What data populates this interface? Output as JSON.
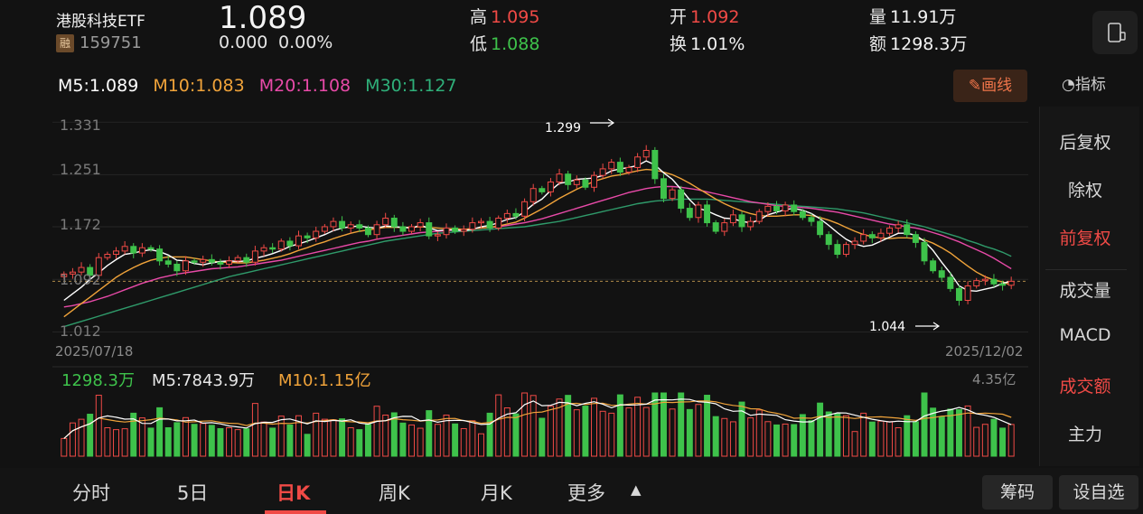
{
  "header": {
    "name": "港股科技ETF",
    "badge": "融",
    "code": "159751",
    "price": "1.089",
    "change": "0.000",
    "change_pct": "0.00%",
    "high_label": "高",
    "high": "1.095",
    "low_label": "低",
    "low": "1.088",
    "open_label": "开",
    "open": "1.092",
    "turnover_label": "换",
    "turnover": "1.01%",
    "volume_label": "量",
    "volume": "11.91万",
    "amount_label": "额",
    "amount": "1298.3万"
  },
  "ma": {
    "m5": "M5:1.089",
    "m10": "M10:1.083",
    "m20": "M20:1.108",
    "m30": "M30:1.127"
  },
  "toolbar": {
    "draw_label": "画线",
    "indicator_label": "指标"
  },
  "chart_labels": {
    "y_top": "1.331",
    "y_2": "1.251",
    "y_3": "1.172",
    "y_4": "1.092",
    "y_bottom": "1.012",
    "date_start": "2025/07/18",
    "date_end": "2025/12/02",
    "high_marker": "1.299",
    "low_marker": "1.044"
  },
  "volume_panel": {
    "current": "1298.3万",
    "m5": "M5:7843.9万",
    "m10": "M10:1.15亿",
    "max_label": "4.35亿"
  },
  "side_menu": [
    "后复权",
    "除权",
    "前复权",
    "成交量",
    "MACD",
    "成交额",
    "主力"
  ],
  "tabs": [
    "分时",
    "5日",
    "日K",
    "周K",
    "月K",
    "更多"
  ],
  "buttons": {
    "chips": "筹码",
    "watchlist": "设自选"
  },
  "colors": {
    "up": "#f04a46",
    "down": "#3ec24b",
    "m5": "#ffffff",
    "m10": "#f0a33a",
    "m20": "#e84aa8",
    "m30": "#2f9a6a"
  },
  "chart_data": {
    "type": "candlestick",
    "x_range": [
      "2025/07/18",
      "2025/12/02"
    ],
    "y_ticks": [
      1.331,
      1.251,
      1.172,
      1.092,
      1.012
    ],
    "ylim": [
      0.992,
      1.345
    ],
    "close": [
      1.1,
      1.103,
      1.11,
      1.098,
      1.125,
      1.13,
      1.135,
      1.142,
      1.132,
      1.14,
      1.138,
      1.12,
      1.115,
      1.105,
      1.12,
      1.118,
      1.122,
      1.118,
      1.115,
      1.12,
      1.125,
      1.118,
      1.135,
      1.14,
      1.138,
      1.15,
      1.143,
      1.158,
      1.155,
      1.165,
      1.172,
      1.18,
      1.17,
      1.175,
      1.17,
      1.16,
      1.175,
      1.185,
      1.172,
      1.165,
      1.172,
      1.178,
      1.158,
      1.16,
      1.17,
      1.165,
      1.168,
      1.178,
      1.18,
      1.17,
      1.185,
      1.192,
      1.188,
      1.21,
      1.23,
      1.225,
      1.24,
      1.252,
      1.236,
      1.243,
      1.232,
      1.25,
      1.26,
      1.27,
      1.255,
      1.262,
      1.278,
      1.288,
      1.245,
      1.215,
      1.228,
      1.2,
      1.186,
      1.205,
      1.178,
      1.165,
      1.178,
      1.19,
      1.172,
      1.18,
      1.195,
      1.203,
      1.196,
      1.205,
      1.195,
      1.186,
      1.18,
      1.16,
      1.145,
      1.13,
      1.145,
      1.15,
      1.16,
      1.155,
      1.162,
      1.17,
      1.175,
      1.16,
      1.148,
      1.12,
      1.105,
      1.095,
      1.078,
      1.06,
      1.082,
      1.09,
      1.092,
      1.085,
      1.083,
      1.089
    ],
    "m5": [
      1.06,
      1.07,
      1.08,
      1.092,
      1.102,
      1.113,
      1.122,
      1.13,
      1.132,
      1.135,
      1.137,
      1.134,
      1.129,
      1.121,
      1.12,
      1.116,
      1.114,
      1.117,
      1.119,
      1.12,
      1.119,
      1.12,
      1.124,
      1.127,
      1.131,
      1.136,
      1.142,
      1.146,
      1.15,
      1.155,
      1.16,
      1.166,
      1.17,
      1.172,
      1.173,
      1.171,
      1.17,
      1.173,
      1.172,
      1.171,
      1.17,
      1.174,
      1.17,
      1.166,
      1.167,
      1.167,
      1.166,
      1.168,
      1.172,
      1.174,
      1.178,
      1.183,
      1.186,
      1.195,
      1.206,
      1.214,
      1.227,
      1.238,
      1.24,
      1.244,
      1.245,
      1.246,
      1.25,
      1.257,
      1.26,
      1.262,
      1.265,
      1.272,
      1.266,
      1.254,
      1.244,
      1.229,
      1.213,
      1.2,
      1.196,
      1.19,
      1.185,
      1.184,
      1.18,
      1.178,
      1.182,
      1.19,
      1.194,
      1.198,
      1.2,
      1.197,
      1.192,
      1.184,
      1.174,
      1.163,
      1.153,
      1.146,
      1.142,
      1.144,
      1.15,
      1.156,
      1.162,
      1.162,
      1.159,
      1.15,
      1.136,
      1.118,
      1.101,
      1.082,
      1.075,
      1.074,
      1.077,
      1.08,
      1.086,
      1.089
    ],
    "m10": [
      1.035,
      1.045,
      1.055,
      1.065,
      1.075,
      1.085,
      1.095,
      1.103,
      1.11,
      1.116,
      1.121,
      1.124,
      1.126,
      1.126,
      1.126,
      1.124,
      1.122,
      1.12,
      1.118,
      1.118,
      1.117,
      1.117,
      1.119,
      1.121,
      1.124,
      1.127,
      1.131,
      1.136,
      1.14,
      1.145,
      1.149,
      1.154,
      1.158,
      1.162,
      1.165,
      1.167,
      1.169,
      1.171,
      1.171,
      1.171,
      1.171,
      1.172,
      1.171,
      1.17,
      1.169,
      1.169,
      1.168,
      1.169,
      1.17,
      1.171,
      1.173,
      1.176,
      1.179,
      1.185,
      1.192,
      1.199,
      1.207,
      1.215,
      1.222,
      1.229,
      1.235,
      1.241,
      1.245,
      1.249,
      1.251,
      1.254,
      1.257,
      1.259,
      1.258,
      1.255,
      1.251,
      1.245,
      1.238,
      1.23,
      1.222,
      1.214,
      1.207,
      1.201,
      1.196,
      1.192,
      1.189,
      1.188,
      1.188,
      1.189,
      1.19,
      1.19,
      1.189,
      1.186,
      1.182,
      1.177,
      1.171,
      1.165,
      1.16,
      1.157,
      1.155,
      1.154,
      1.155,
      1.155,
      1.154,
      1.152,
      1.147,
      1.14,
      1.132,
      1.122,
      1.112,
      1.103,
      1.096,
      1.091,
      1.088,
      1.083
    ],
    "m20": [
      1.05,
      1.052,
      1.055,
      1.058,
      1.062,
      1.066,
      1.071,
      1.076,
      1.081,
      1.086,
      1.09,
      1.094,
      1.097,
      1.1,
      1.102,
      1.104,
      1.106,
      1.108,
      1.109,
      1.11,
      1.111,
      1.113,
      1.115,
      1.117,
      1.119,
      1.121,
      1.124,
      1.127,
      1.13,
      1.133,
      1.136,
      1.139,
      1.142,
      1.145,
      1.148,
      1.15,
      1.153,
      1.155,
      1.157,
      1.159,
      1.161,
      1.163,
      1.164,
      1.165,
      1.166,
      1.167,
      1.168,
      1.169,
      1.17,
      1.171,
      1.172,
      1.174,
      1.176,
      1.178,
      1.181,
      1.184,
      1.188,
      1.192,
      1.196,
      1.2,
      1.204,
      1.208,
      1.212,
      1.216,
      1.22,
      1.224,
      1.227,
      1.23,
      1.232,
      1.233,
      1.233,
      1.232,
      1.23,
      1.228,
      1.225,
      1.222,
      1.219,
      1.216,
      1.213,
      1.21,
      1.208,
      1.206,
      1.204,
      1.203,
      1.202,
      1.201,
      1.2,
      1.198,
      1.196,
      1.194,
      1.191,
      1.188,
      1.185,
      1.182,
      1.179,
      1.176,
      1.174,
      1.172,
      1.17,
      1.167,
      1.163,
      1.159,
      1.154,
      1.149,
      1.143,
      1.137,
      1.131,
      1.124,
      1.116,
      1.108
    ],
    "m30": [
      1.02,
      1.024,
      1.028,
      1.032,
      1.036,
      1.04,
      1.044,
      1.048,
      1.052,
      1.056,
      1.06,
      1.064,
      1.068,
      1.072,
      1.076,
      1.08,
      1.084,
      1.088,
      1.092,
      1.096,
      1.099,
      1.102,
      1.105,
      1.108,
      1.111,
      1.114,
      1.117,
      1.12,
      1.123,
      1.126,
      1.129,
      1.132,
      1.135,
      1.138,
      1.141,
      1.144,
      1.147,
      1.15,
      1.152,
      1.154,
      1.156,
      1.158,
      1.16,
      1.162,
      1.163,
      1.164,
      1.165,
      1.166,
      1.167,
      1.168,
      1.169,
      1.17,
      1.171,
      1.172,
      1.174,
      1.176,
      1.178,
      1.18,
      1.183,
      1.186,
      1.189,
      1.192,
      1.195,
      1.198,
      1.201,
      1.204,
      1.207,
      1.209,
      1.211,
      1.212,
      1.213,
      1.214,
      1.214,
      1.214,
      1.214,
      1.213,
      1.212,
      1.211,
      1.21,
      1.209,
      1.208,
      1.207,
      1.206,
      1.205,
      1.204,
      1.203,
      1.202,
      1.201,
      1.2,
      1.199,
      1.197,
      1.195,
      1.193,
      1.19,
      1.187,
      1.184,
      1.181,
      1.178,
      1.175,
      1.172,
      1.168,
      1.164,
      1.16,
      1.156,
      1.151,
      1.147,
      1.142,
      1.138,
      1.133,
      1.127
    ]
  }
}
